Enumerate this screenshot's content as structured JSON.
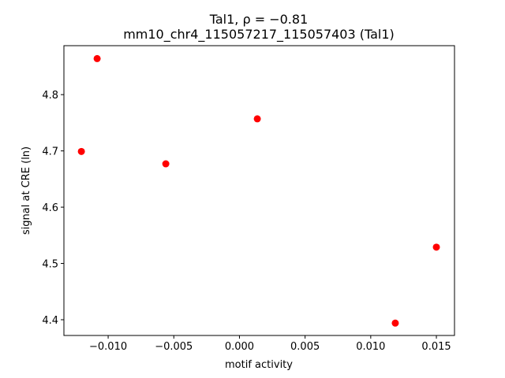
{
  "chart_data": {
    "type": "scatter",
    "title": "Tal1, ρ = −0.81",
    "subtitle": "mm10_chr4_115057217_115057403 (Tal1)",
    "x_label": "motif activity",
    "y_label": "signal at CRE (ln)",
    "color": "#ff0000",
    "x": [
      -0.01204,
      -0.01084,
      -0.00561,
      0.00136,
      0.01187,
      0.015
    ],
    "values": [
      4.699,
      4.864,
      4.677,
      4.757,
      4.394,
      4.529
    ],
    "xlim": [
      -0.01337,
      0.01638
    ],
    "ylim": [
      4.372,
      4.887
    ],
    "xticks": [
      {
        "value": -0.01,
        "label": "−0.010"
      },
      {
        "value": -0.005,
        "label": "−0.005"
      },
      {
        "value": 0,
        "label": "0.000"
      },
      0.005,
      {
        "value": 0.01,
        "label": "0.010"
      },
      0.015
    ],
    "yticks": [
      4.4,
      4.5,
      4.6,
      4.7,
      4.8
    ],
    "grid": false
  }
}
